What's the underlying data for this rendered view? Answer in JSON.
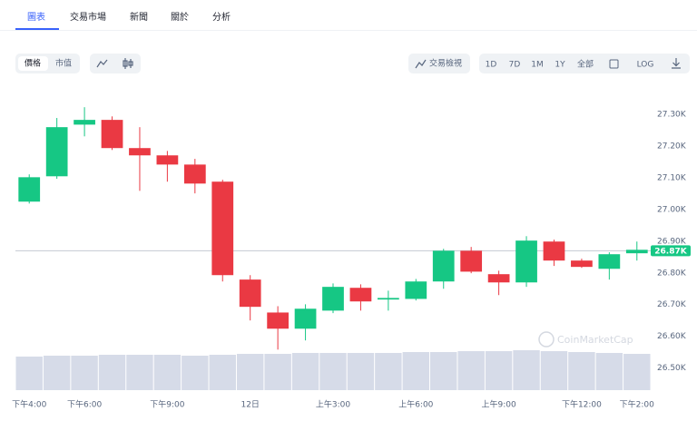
{
  "tabs": [
    "圖表",
    "交易市場",
    "新聞",
    "關於",
    "分析"
  ],
  "toolbar": {
    "metric": [
      "價格",
      "市值"
    ],
    "view": "交易檢視",
    "ranges": [
      "1D",
      "7D",
      "1M",
      "1Y",
      "全部"
    ],
    "log": "LOG"
  },
  "chart_data": {
    "type": "candlestick",
    "categories": [
      "下午4:00",
      null,
      "下午6:00",
      null,
      null,
      "下午9:00",
      null,
      null,
      "12日",
      null,
      null,
      "上午3:00",
      null,
      null,
      "上午6:00",
      null,
      null,
      "上午9:00",
      null,
      null,
      "下午12:00",
      null,
      "下午2:00"
    ],
    "open": [
      27025,
      27105,
      27268,
      27283,
      27194,
      27171,
      27142,
      27088,
      26779,
      26675,
      26624,
      26681,
      26753,
      26716,
      26718,
      26773,
      26870,
      26796,
      26770,
      26899,
      26839,
      26813,
      26862
    ],
    "high": [
      27111,
      27289,
      27323,
      27294,
      27260,
      27185,
      27160,
      27094,
      26793,
      26695,
      26701,
      26767,
      26764,
      26744,
      26781,
      26876,
      26882,
      26807,
      26916,
      26905,
      26845,
      26865,
      26899
    ],
    "low": [
      27019,
      27097,
      27231,
      27188,
      27059,
      27088,
      27051,
      26773,
      26650,
      26558,
      26587,
      26673,
      26681,
      26681,
      26713,
      26750,
      26799,
      26730,
      26756,
      26822,
      26816,
      26779,
      26839
    ],
    "close": [
      27102,
      27260,
      27283,
      27194,
      27171,
      27142,
      27082,
      26793,
      26693,
      26624,
      26687,
      26756,
      26710,
      26721,
      26773,
      26870,
      26804,
      26770,
      26902,
      26839,
      26819,
      26859,
      26873
    ],
    "volume": [
      37,
      38,
      38,
      39,
      39,
      39,
      38,
      39,
      40,
      40,
      41,
      41,
      41,
      41,
      42,
      42,
      43,
      43,
      44,
      43,
      42,
      41,
      40
    ],
    "volume_lim": [
      0,
      45
    ],
    "up_color": "#16c784",
    "down_color": "#ea3943",
    "volume_color": "#d6dbe8",
    "ylim": [
      26430,
      27375
    ],
    "yticks": [
      {
        "value": 26500,
        "label": "26.50K"
      },
      {
        "value": 26600,
        "label": "26.60K"
      },
      {
        "value": 26700,
        "label": "26.70K"
      },
      {
        "value": 26800,
        "label": "26.80K"
      },
      {
        "value": 26900,
        "label": "26.90K"
      },
      {
        "value": 27000,
        "label": "27.00K"
      },
      {
        "value": 27100,
        "label": "27.10K"
      },
      {
        "value": 27200,
        "label": "27.20K"
      },
      {
        "value": 27300,
        "label": "27.30K"
      }
    ],
    "last_price": {
      "value": 26870,
      "label": "26.87K"
    },
    "watermark": "CoinMarketCap"
  }
}
